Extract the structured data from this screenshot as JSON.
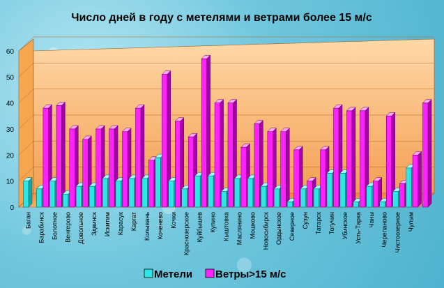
{
  "chart_data": {
    "type": "bar",
    "title": "Число дней в году с метелями и ветрами более 15 м/с",
    "xlabel": "",
    "ylabel": "",
    "ylim": [
      0,
      60
    ],
    "yticks": [
      0,
      10,
      20,
      30,
      40,
      50,
      60
    ],
    "grid": true,
    "legend_position": "bottom",
    "categories": [
      "Баган",
      "Барабинск",
      "Болотное",
      "Венгерово",
      "Довольное",
      "Здвинск",
      "Искитим",
      "Карасук",
      "Каргат",
      "Колывань",
      "Коченево",
      "Кочки",
      "Краснозерское",
      "Куйбышев",
      "Купино",
      "Кыштовка",
      "Маслянино",
      "Мошково",
      "Новосибирск",
      "Ордынское",
      "Северное",
      "Сузун",
      "Татарск",
      "Тогучин",
      "Убинское",
      "Усть-Тарка",
      "Чаны",
      "Черепаново",
      "Чистоозерное",
      "Чулым"
    ],
    "series": [
      {
        "name": "Метели",
        "color": "#2ee6e6",
        "values": [
          10,
          7,
          10,
          5,
          8,
          8,
          11,
          10,
          11,
          11,
          19,
          10,
          7,
          12,
          12,
          6,
          11,
          11,
          8,
          7,
          2,
          7,
          7,
          13,
          13,
          2,
          8,
          2,
          6,
          15
        ]
      },
      {
        "name": "Ветры>15 м/с",
        "color": "#ff22ff",
        "values": [
          0,
          38,
          39,
          30,
          26,
          30,
          30,
          29,
          38,
          18,
          51,
          33,
          27,
          57,
          40,
          40,
          23,
          32,
          29,
          29,
          22,
          10,
          22,
          38,
          37,
          37,
          10,
          35,
          9,
          20
        ]
      }
    ],
    "extra_bar": {
      "series": "Ветры>15 м/с",
      "value": 40
    }
  }
}
